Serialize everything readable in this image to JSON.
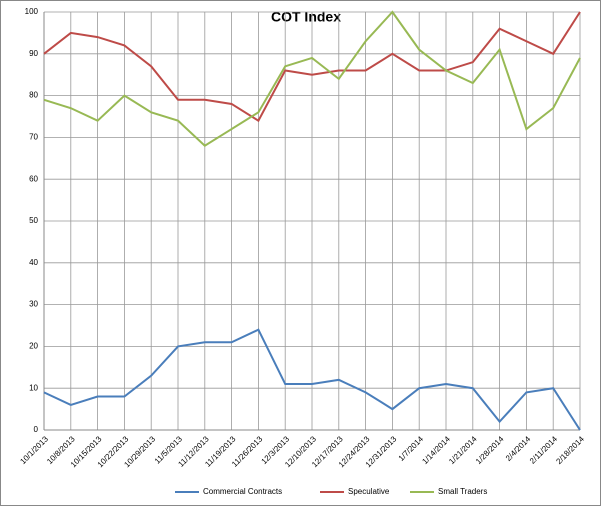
{
  "chart_data": {
    "type": "line",
    "title": "COT Index",
    "categories": [
      "10/1/2013",
      "10/8/2013",
      "10/15/2013",
      "10/22/2013",
      "10/29/2013",
      "11/5/2013",
      "11/12/2013",
      "11/19/2013",
      "11/26/2013",
      "12/3/2013",
      "12/10/2013",
      "12/17/2013",
      "12/24/2013",
      "12/31/2013",
      "1/7/2014",
      "1/14/2014",
      "1/21/2014",
      "1/28/2014",
      "2/4/2014",
      "2/11/2014",
      "2/18/2014"
    ],
    "series": [
      {
        "name": "Commercial Contracts",
        "color": "#4a7ebb",
        "values": [
          9,
          6,
          8,
          8,
          13,
          20,
          21,
          21,
          24,
          11,
          11,
          12,
          9,
          5,
          10,
          11,
          10,
          2,
          9,
          10,
          0
        ]
      },
      {
        "name": "Speculative",
        "color": "#be4b48",
        "values": [
          90,
          95,
          94,
          92,
          87,
          79,
          79,
          78,
          74,
          86,
          85,
          86,
          86,
          90,
          86,
          86,
          88,
          96,
          93,
          90,
          100
        ]
      },
      {
        "name": "Small Traders",
        "color": "#98b954",
        "values": [
          79,
          77,
          74,
          80,
          76,
          74,
          68,
          72,
          76,
          87,
          89,
          84,
          93,
          100,
          91,
          86,
          83,
          91,
          72,
          77,
          89
        ]
      }
    ],
    "ylim": [
      0,
      100
    ],
    "yticks": [
      0,
      10,
      20,
      30,
      40,
      50,
      60,
      70,
      80,
      90,
      100
    ],
    "grid": true,
    "legend": "bottom"
  }
}
